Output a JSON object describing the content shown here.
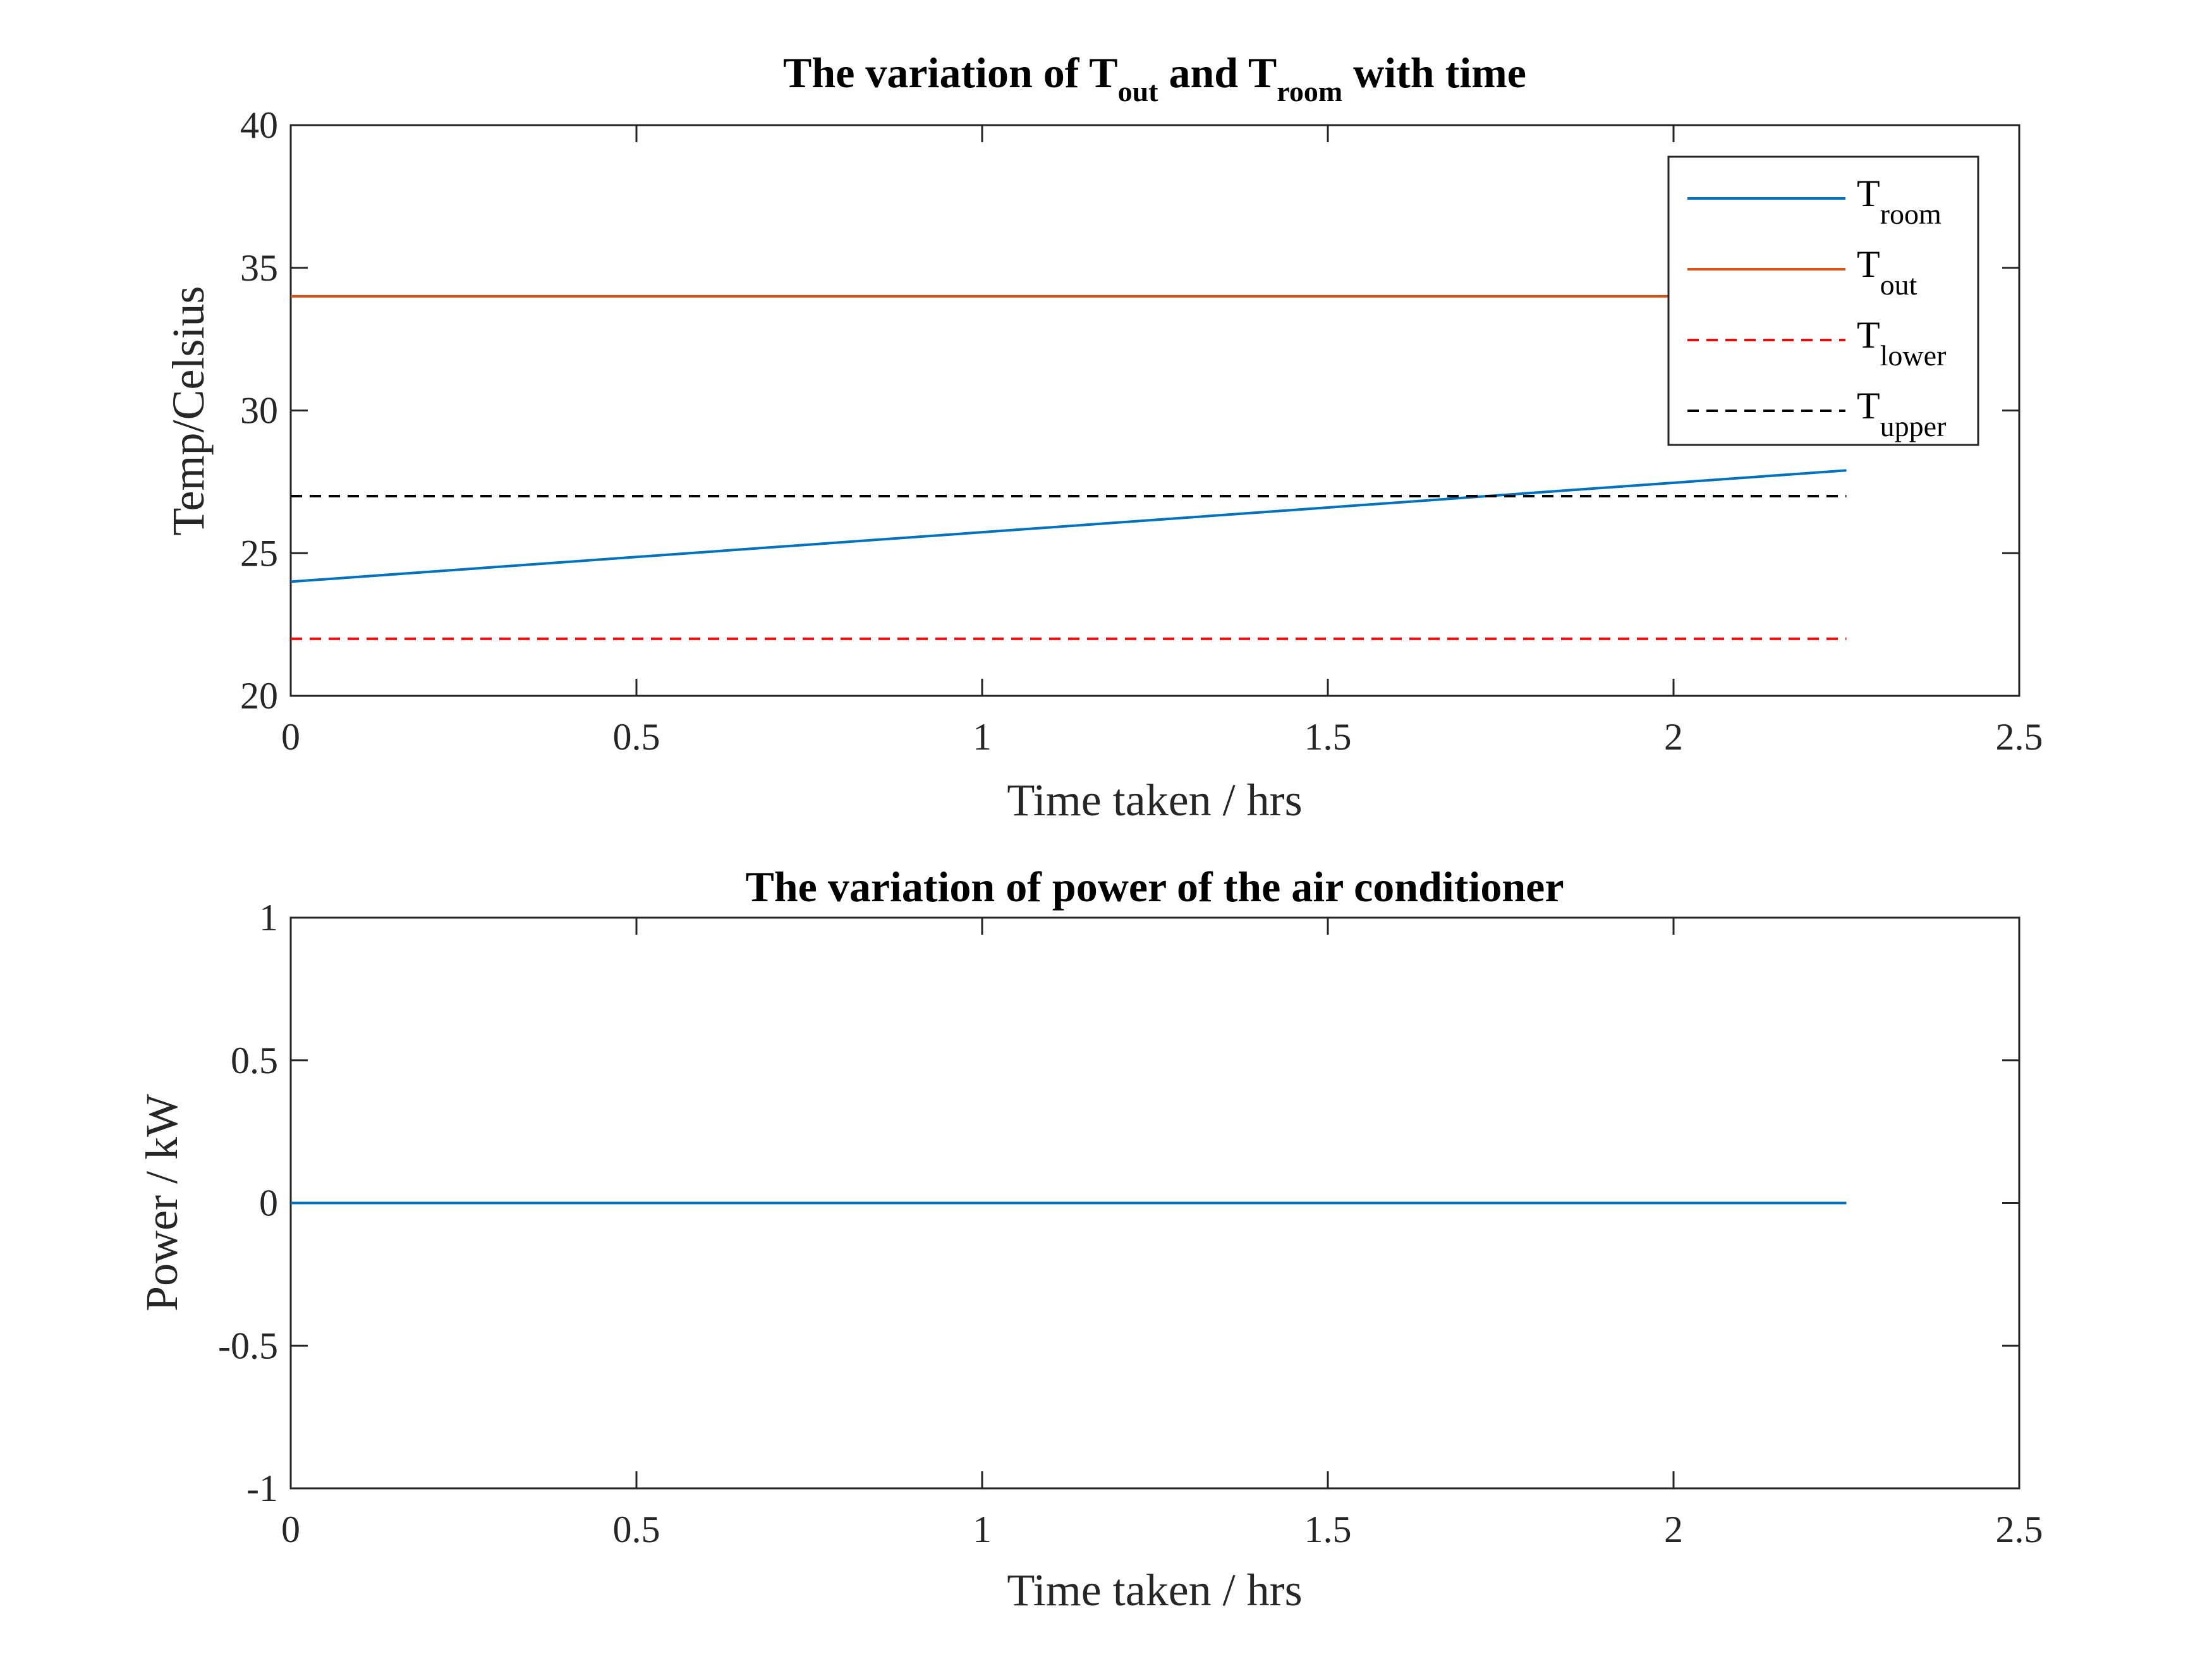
{
  "chart_data": [
    {
      "type": "line",
      "title": {
        "prefix": "The variation of T",
        "sub1": "out",
        "middle": " and T",
        "sub2": "room",
        "suffix": " with time"
      },
      "xlabel": "Time taken /  hrs",
      "ylabel": "Temp/Celsius",
      "xlim": [
        0,
        2.5
      ],
      "ylim": [
        20,
        40
      ],
      "xticks": [
        0,
        0.5,
        1,
        1.5,
        2,
        2.5
      ],
      "xtick_labels": [
        "0",
        "0.5",
        "1",
        "1.5",
        "2",
        "2.5"
      ],
      "yticks": [
        20,
        25,
        30,
        35,
        40
      ],
      "ytick_labels": [
        "20",
        "25",
        "30",
        "35",
        "40"
      ],
      "grid": false,
      "legend_position": "top-right",
      "series": [
        {
          "name": {
            "base": "T",
            "sub": "room"
          },
          "color": "#0072BD",
          "dash": "solid",
          "x": [
            0,
            2.25
          ],
          "y": [
            24,
            27.9
          ]
        },
        {
          "name": {
            "base": "T",
            "sub": "out"
          },
          "color": "#D95319",
          "dash": "solid",
          "x": [
            0,
            2.25
          ],
          "y": [
            34,
            34
          ]
        },
        {
          "name": {
            "base": "T",
            "sub": "lower"
          },
          "color": "#FF0000",
          "dash": "dashed",
          "x": [
            0,
            2.25
          ],
          "y": [
            22,
            22
          ]
        },
        {
          "name": {
            "base": "T",
            "sub": "upper"
          },
          "color": "#000000",
          "dash": "dashed",
          "x": [
            0,
            2.25
          ],
          "y": [
            27,
            27
          ]
        }
      ]
    },
    {
      "type": "line",
      "title": "The variation of power of the air conditioner",
      "xlabel": "Time taken /  hrs",
      "ylabel": "Power / kW",
      "xlim": [
        0,
        2.5
      ],
      "ylim": [
        -1,
        1
      ],
      "xticks": [
        0,
        0.5,
        1,
        1.5,
        2,
        2.5
      ],
      "xtick_labels": [
        "0",
        "0.5",
        "1",
        "1.5",
        "2",
        "2.5"
      ],
      "yticks": [
        -1,
        -0.5,
        0,
        0.5,
        1
      ],
      "ytick_labels": [
        "-1",
        "-0.5",
        "0",
        "0.5",
        "1"
      ],
      "grid": false,
      "legend_position": "none",
      "series": [
        {
          "color": "#0072BD",
          "dash": "solid",
          "x": [
            0,
            2.25
          ],
          "y": [
            0,
            0
          ]
        }
      ]
    }
  ]
}
